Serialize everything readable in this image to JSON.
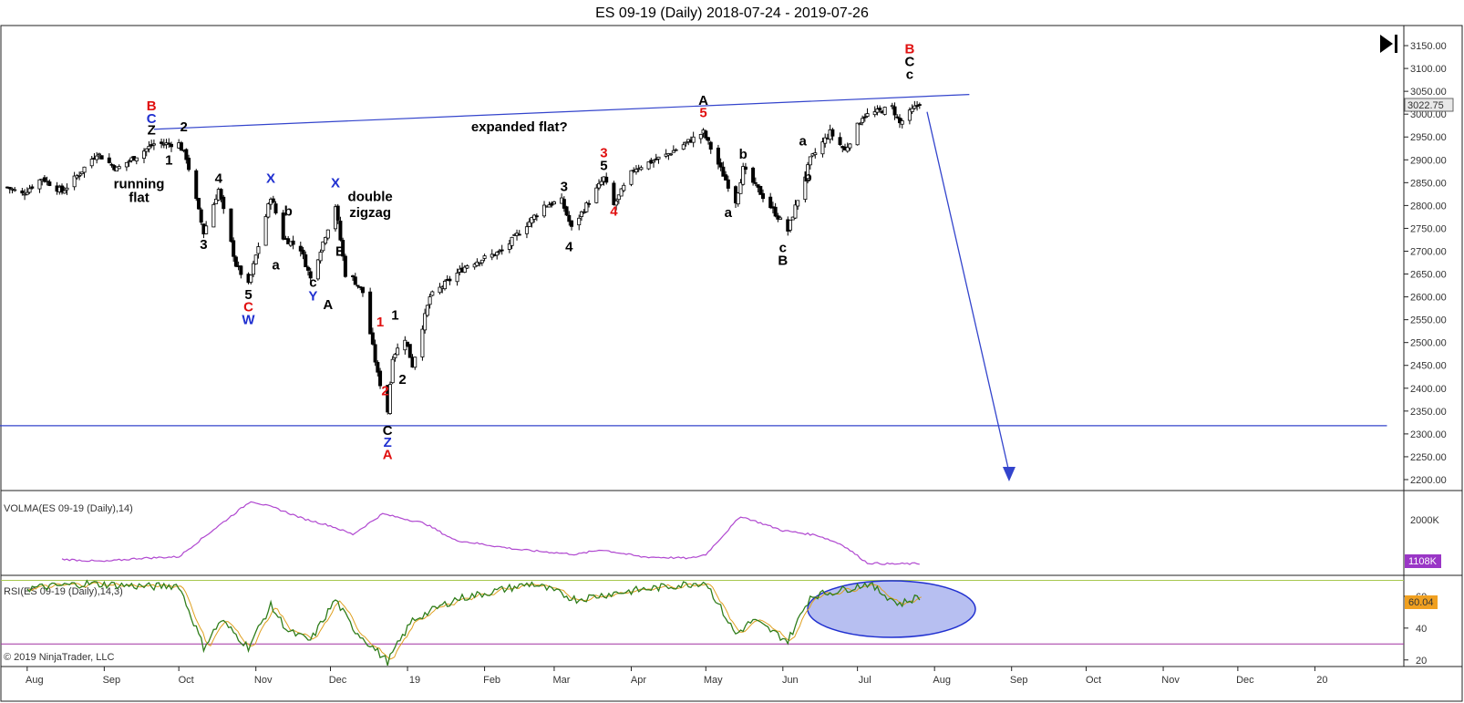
{
  "chart_title": "ES 09-19 (Daily)  2018-07-24 - 2019-07-26",
  "copyright": "© 2019 NinjaTrader, LLC",
  "nav_icon": "skip-forward-icon",
  "colors": {
    "up": "#ffffff",
    "down": "#000000",
    "trendline": "#3344cc",
    "volma": "#b048d0",
    "rsi": "#2f7d1a",
    "rsi_avg": "#e0a020",
    "rsi_upper_line": "#a8c850",
    "rsi_lower_line": "#a030a0",
    "red_label": "#e01010",
    "blue_label": "#2030d0",
    "black_label": "#000000"
  },
  "chart_data": [
    {
      "type": "candlestick",
      "panel": "price",
      "x_ticks": [
        "Aug",
        "Sep",
        "Oct",
        "Nov",
        "Dec",
        "19",
        "Feb",
        "Mar",
        "Apr",
        "May",
        "Jun",
        "Jul",
        "Aug",
        "Sep",
        "Oct",
        "Nov",
        "Dec",
        "20"
      ],
      "y_ticks": [
        "3150.00",
        "3100.00",
        "3050.00",
        "3000.00",
        "2950.00",
        "2900.00",
        "2850.00",
        "2800.00",
        "2750.00",
        "2700.00",
        "2650.00",
        "2600.00",
        "2550.00",
        "2500.00",
        "2450.00",
        "2400.00",
        "2350.00",
        "2300.00",
        "2250.00",
        "2200.00"
      ],
      "ylim": [
        2180,
        3190
      ],
      "last_price": "3022.75",
      "anchors": [
        [
          "2018-07-24",
          2840
        ],
        [
          "2018-07-30",
          2825
        ],
        [
          "2018-08-07",
          2860
        ],
        [
          "2018-08-15",
          2830
        ],
        [
          "2018-08-22",
          2870
        ],
        [
          "2018-08-29",
          2915
        ],
        [
          "2018-09-06",
          2880
        ],
        [
          "2018-09-13",
          2905
        ],
        [
          "2018-09-21",
          2935
        ],
        [
          "2018-10-01",
          2935
        ],
        [
          "2018-10-04",
          2905
        ],
        [
          "2018-10-11",
          2740
        ],
        [
          "2018-10-17",
          2835
        ],
        [
          "2018-10-24",
          2670
        ],
        [
          "2018-10-29",
          2625
        ],
        [
          "2018-11-07",
          2820
        ],
        [
          "2018-11-12",
          2730
        ],
        [
          "2018-11-19",
          2705
        ],
        [
          "2018-11-23",
          2640
        ],
        [
          "2018-12-03",
          2800
        ],
        [
          "2018-12-07",
          2650
        ],
        [
          "2018-12-10",
          2640
        ],
        [
          "2018-12-14",
          2610
        ],
        [
          "2018-12-20",
          2430
        ],
        [
          "2018-12-24",
          2350
        ],
        [
          "2018-12-26",
          2470
        ],
        [
          "2018-12-31",
          2510
        ],
        [
          "2019-01-03",
          2450
        ],
        [
          "2019-01-10",
          2600
        ],
        [
          "2019-01-25",
          2670
        ],
        [
          "2019-02-08",
          2700
        ],
        [
          "2019-02-25",
          2800
        ],
        [
          "2019-03-04",
          2810
        ],
        [
          "2019-03-08",
          2750
        ],
        [
          "2019-03-21",
          2860
        ],
        [
          "2019-03-25",
          2800
        ],
        [
          "2019-04-02",
          2880
        ],
        [
          "2019-04-15",
          2910
        ],
        [
          "2019-04-30",
          2960
        ],
        [
          "2019-05-13",
          2810
        ],
        [
          "2019-05-16",
          2880
        ],
        [
          "2019-06-03",
          2745
        ],
        [
          "2019-06-12",
          2900
        ],
        [
          "2019-06-20",
          2960
        ],
        [
          "2019-06-26",
          2920
        ],
        [
          "2019-07-03",
          2995
        ],
        [
          "2019-07-15",
          3015
        ],
        [
          "2019-07-18",
          2980
        ],
        [
          "2019-07-26",
          3025
        ]
      ],
      "trendlines": [
        {
          "from": [
            "2018-09-21",
            2967
          ],
          "to": [
            "2019-08-15",
            3043
          ]
        },
        {
          "from": [
            "2018-07-20",
            2318
          ],
          "to": [
            "2020-01-30",
            2318
          ]
        }
      ],
      "projection_arrow": {
        "from": [
          "2019-07-29",
          3005
        ],
        "to": [
          "2019-08-31",
          2200
        ]
      }
    },
    {
      "type": "line",
      "panel": "volma",
      "label": "VOLMA(ES 09-19 (Daily),14)",
      "y_ticks": [
        "2000K"
      ],
      "last_value": "1108K",
      "ylim": [
        900,
        2600
      ],
      "anchors": [
        [
          "2018-08-15",
          1200
        ],
        [
          "2018-09-01",
          1150
        ],
        [
          "2018-09-15",
          1220
        ],
        [
          "2018-10-01",
          1250
        ],
        [
          "2018-10-12",
          1700
        ],
        [
          "2018-10-30",
          2420
        ],
        [
          "2018-11-10",
          2250
        ],
        [
          "2018-11-20",
          2050
        ],
        [
          "2018-12-01",
          1900
        ],
        [
          "2018-12-10",
          1720
        ],
        [
          "2018-12-22",
          2150
        ],
        [
          "2019-01-08",
          1950
        ],
        [
          "2019-01-20",
          1600
        ],
        [
          "2019-02-15",
          1400
        ],
        [
          "2019-03-10",
          1300
        ],
        [
          "2019-03-20",
          1400
        ],
        [
          "2019-04-05",
          1250
        ],
        [
          "2019-04-25",
          1220
        ],
        [
          "2019-05-01",
          1300
        ],
        [
          "2019-05-15",
          2100
        ],
        [
          "2019-06-01",
          1800
        ],
        [
          "2019-06-15",
          1700
        ],
        [
          "2019-06-25",
          1500
        ],
        [
          "2019-07-05",
          1120
        ],
        [
          "2019-07-15",
          1100
        ],
        [
          "2019-07-26",
          1108
        ]
      ]
    },
    {
      "type": "line",
      "panel": "rsi",
      "label": "RSI(ES 09-19 (Daily),14,3)",
      "y_ticks": [
        "60",
        "40",
        "20"
      ],
      "last_value": "60.04",
      "ylim": [
        17,
        72
      ],
      "levels": [
        70,
        30
      ],
      "anchors": [
        [
          "2018-08-01",
          65
        ],
        [
          "2018-08-25",
          68
        ],
        [
          "2018-09-20",
          66
        ],
        [
          "2018-10-01",
          67
        ],
        [
          "2018-10-11",
          28
        ],
        [
          "2018-10-18",
          45
        ],
        [
          "2018-10-29",
          28
        ],
        [
          "2018-11-07",
          54
        ],
        [
          "2018-11-14",
          38
        ],
        [
          "2018-11-23",
          32
        ],
        [
          "2018-12-03",
          58
        ],
        [
          "2018-12-10",
          40
        ],
        [
          "2018-12-24",
          19
        ],
        [
          "2019-01-03",
          45
        ],
        [
          "2019-01-20",
          58
        ],
        [
          "2019-02-20",
          68
        ],
        [
          "2019-03-10",
          58
        ],
        [
          "2019-03-25",
          62
        ],
        [
          "2019-04-15",
          66
        ],
        [
          "2019-05-01",
          69
        ],
        [
          "2019-05-13",
          36
        ],
        [
          "2019-05-20",
          45
        ],
        [
          "2019-06-03",
          32
        ],
        [
          "2019-06-12",
          60
        ],
        [
          "2019-06-25",
          64
        ],
        [
          "2019-07-05",
          68
        ],
        [
          "2019-07-18",
          55
        ],
        [
          "2019-07-26",
          60
        ]
      ]
    }
  ],
  "annotations": [
    {
      "text": "B",
      "date": "2018-09-20",
      "price": 3008,
      "color": "red"
    },
    {
      "text": "C",
      "date": "2018-09-20",
      "price": 2980,
      "color": "blue"
    },
    {
      "text": "Z",
      "date": "2018-09-20",
      "price": 2955,
      "color": "black"
    },
    {
      "text": "2",
      "date": "2018-10-03",
      "price": 2962,
      "color": "black"
    },
    {
      "text": "1",
      "date": "2018-09-27",
      "price": 2890,
      "color": "black"
    },
    {
      "text": "running",
      "date": "2018-09-15",
      "price": 2838,
      "color": "black"
    },
    {
      "text": "flat",
      "date": "2018-09-15",
      "price": 2808,
      "color": "black"
    },
    {
      "text": "4",
      "date": "2018-10-17",
      "price": 2850,
      "color": "black"
    },
    {
      "text": "3",
      "date": "2018-10-11",
      "price": 2705,
      "color": "black"
    },
    {
      "text": "5",
      "date": "2018-10-29",
      "price": 2595,
      "color": "black"
    },
    {
      "text": "C",
      "date": "2018-10-29",
      "price": 2568,
      "color": "red"
    },
    {
      "text": "W",
      "date": "2018-10-29",
      "price": 2540,
      "color": "blue"
    },
    {
      "text": "X",
      "date": "2018-11-07",
      "price": 2850,
      "color": "blue"
    },
    {
      "text": "b",
      "date": "2018-11-14",
      "price": 2778,
      "color": "black"
    },
    {
      "text": "a",
      "date": "2018-11-09",
      "price": 2660,
      "color": "black"
    },
    {
      "text": "c",
      "date": "2018-11-24",
      "price": 2622,
      "color": "black"
    },
    {
      "text": "Y",
      "date": "2018-11-24",
      "price": 2592,
      "color": "blue"
    },
    {
      "text": "X",
      "date": "2018-12-03",
      "price": 2840,
      "color": "blue"
    },
    {
      "text": "double",
      "date": "2018-12-17",
      "price": 2810,
      "color": "black"
    },
    {
      "text": "zigzag",
      "date": "2018-12-17",
      "price": 2775,
      "color": "black"
    },
    {
      "text": "B",
      "date": "2018-12-05",
      "price": 2690,
      "color": "black"
    },
    {
      "text": "A",
      "date": "2018-11-30",
      "price": 2573,
      "color": "black"
    },
    {
      "text": "1",
      "date": "2018-12-21",
      "price": 2535,
      "color": "red"
    },
    {
      "text": "1",
      "date": "2018-12-27",
      "price": 2550,
      "color": "black"
    },
    {
      "text": "2",
      "date": "2018-12-23",
      "price": 2385,
      "color": "red"
    },
    {
      "text": "2",
      "date": "2018-12-30",
      "price": 2410,
      "color": "black"
    },
    {
      "text": "C",
      "date": "2018-12-24",
      "price": 2298,
      "color": "black"
    },
    {
      "text": "Z",
      "date": "2018-12-24",
      "price": 2272,
      "color": "blue"
    },
    {
      "text": "A",
      "date": "2018-12-24",
      "price": 2245,
      "color": "red"
    },
    {
      "text": "expanded flat?",
      "date": "2019-02-15",
      "price": 2962,
      "color": "black"
    },
    {
      "text": "3",
      "date": "2019-03-05",
      "price": 2832,
      "color": "black"
    },
    {
      "text": "4",
      "date": "2019-03-07",
      "price": 2700,
      "color": "black"
    },
    {
      "text": "3",
      "date": "2019-03-21",
      "price": 2906,
      "color": "red"
    },
    {
      "text": "5",
      "date": "2019-03-21",
      "price": 2878,
      "color": "black"
    },
    {
      "text": "4",
      "date": "2019-03-25",
      "price": 2778,
      "color": "red"
    },
    {
      "text": "A",
      "date": "2019-04-30",
      "price": 3020,
      "color": "black"
    },
    {
      "text": "5",
      "date": "2019-04-30",
      "price": 2993,
      "color": "red"
    },
    {
      "text": "b",
      "date": "2019-05-16",
      "price": 2903,
      "color": "black"
    },
    {
      "text": "a",
      "date": "2019-05-10",
      "price": 2775,
      "color": "black"
    },
    {
      "text": "c",
      "date": "2019-06-01",
      "price": 2698,
      "color": "black"
    },
    {
      "text": "B",
      "date": "2019-06-01",
      "price": 2670,
      "color": "black"
    },
    {
      "text": "a",
      "date": "2019-06-09",
      "price": 2932,
      "color": "black"
    },
    {
      "text": "b",
      "date": "2019-06-11",
      "price": 2853,
      "color": "black"
    },
    {
      "text": "B",
      "date": "2019-07-22",
      "price": 3133,
      "color": "red"
    },
    {
      "text": "C",
      "date": "2019-07-22",
      "price": 3105,
      "color": "black"
    },
    {
      "text": "c",
      "date": "2019-07-22",
      "price": 3077,
      "color": "black"
    }
  ]
}
